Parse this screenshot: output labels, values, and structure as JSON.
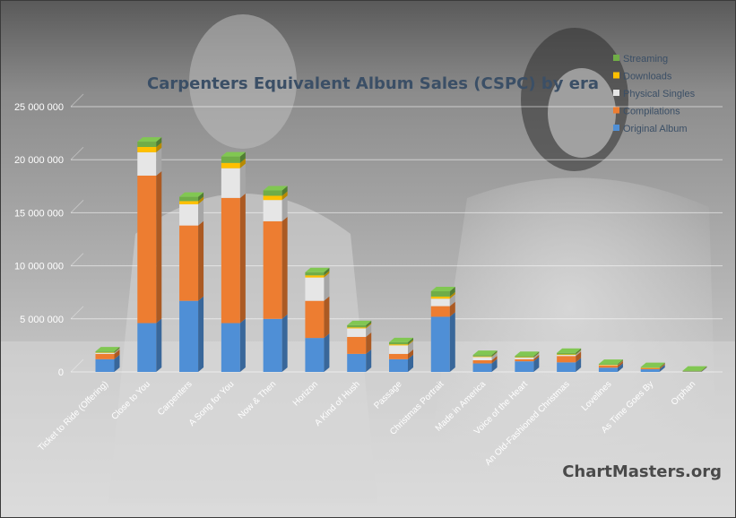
{
  "chart_data": {
    "type": "bar",
    "stacked": true,
    "title": "Carpenters Equivalent Album Sales (CSPC) by era",
    "xlabel": "",
    "ylabel": "",
    "ylim": [
      0,
      25000000
    ],
    "yticks": [
      0,
      5000000,
      10000000,
      15000000,
      20000000,
      25000000
    ],
    "ytick_labels": [
      "0",
      "5 000 000",
      "10 000 000",
      "15 000 000",
      "20 000 000",
      "25 000 000"
    ],
    "grid": true,
    "legend_position": "top-right",
    "categories": [
      "Ticket to Ride (Offering)",
      "Close to You",
      "Carpenters",
      "A Song for You",
      "Now & Then",
      "Horizon",
      "A Kind of Hush",
      "Passage",
      "Christmas Portrait",
      "Made in America",
      "Voice of the Heart",
      "An Old-Fashioned Christmas",
      "Lovelines",
      "As Time Goes By",
      "Orphan"
    ],
    "series": [
      {
        "name": "Original Album",
        "color": "#4f8fd6",
        "values": [
          1200000,
          4600000,
          6700000,
          4600000,
          5000000,
          3200000,
          1700000,
          1200000,
          5200000,
          800000,
          1000000,
          900000,
          400000,
          250000,
          50000
        ]
      },
      {
        "name": "Compilations",
        "color": "#ed7d31",
        "values": [
          500000,
          13900000,
          7100000,
          11800000,
          9200000,
          3500000,
          1600000,
          500000,
          1000000,
          300000,
          200000,
          600000,
          200000,
          100000,
          30000
        ]
      },
      {
        "name": "Physical Singles",
        "color": "#e6e6e6",
        "values": [
          100000,
          2200000,
          2000000,
          2800000,
          2000000,
          2200000,
          800000,
          800000,
          700000,
          300000,
          150000,
          100000,
          50000,
          30000,
          10000
        ]
      },
      {
        "name": "Downloads",
        "color": "#ffc000",
        "values": [
          30000,
          500000,
          300000,
          500000,
          400000,
          200000,
          100000,
          100000,
          200000,
          60000,
          40000,
          50000,
          20000,
          10000,
          5000
        ]
      },
      {
        "name": "Streaming",
        "color": "#70ad47",
        "values": [
          100000,
          500000,
          400000,
          600000,
          500000,
          300000,
          200000,
          200000,
          500000,
          130000,
          110000,
          150000,
          80000,
          60000,
          20000
        ]
      }
    ],
    "legend_order": [
      "Streaming",
      "Downloads",
      "Physical Singles",
      "Compilations",
      "Original Album"
    ]
  },
  "watermark": "ChartMasters.org"
}
